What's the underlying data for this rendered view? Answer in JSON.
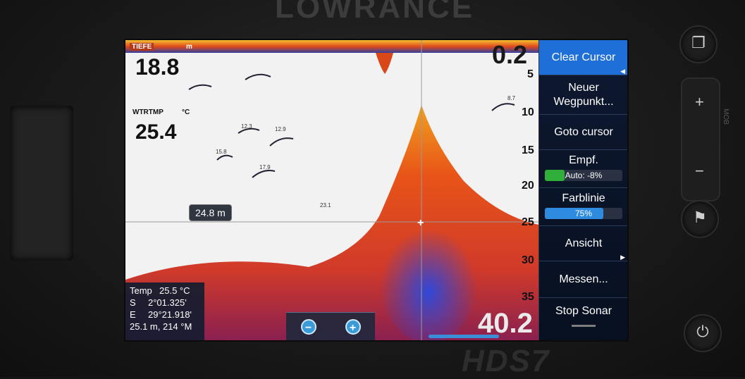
{
  "device": {
    "brand_top": "LOWRANCE",
    "model": "HDS7",
    "mob_label": "MOB"
  },
  "sonar": {
    "depth_label": "TIEFE",
    "depth_unit": "m",
    "depth_value": "18.8",
    "temp_label": "WTRTMP",
    "temp_unit": "°C",
    "temp_value": "25.4",
    "range_top": "0.2",
    "range_bottom": "40.2",
    "scale_ticks": [
      "5",
      "10",
      "15",
      "20",
      "25",
      "30",
      "35"
    ],
    "cursor_depth": "24.8 m",
    "fish_labels": [
      "12.3",
      "12.9",
      "15.8",
      "17.9",
      "23.1",
      "8.7"
    ]
  },
  "info_box": {
    "rows": [
      {
        "k": "Temp",
        "v": "25.5 °C"
      },
      {
        "k": "S",
        "v": "2°01.325'"
      },
      {
        "k": "E",
        "v": "29°21.918'"
      }
    ],
    "footer": "25.1 m, 214 °M"
  },
  "zoom": {
    "zoom_out_icon": "zoom-out-icon",
    "zoom_in_icon": "zoom-in-icon"
  },
  "menu": {
    "clear_cursor": "Clear Cursor",
    "new_waypoint_line1": "Neuer",
    "new_waypoint_line2": "Wegpunkt...",
    "goto_cursor": "Goto cursor",
    "gain_label": "Empf.",
    "gain_value": "Auto: -8%",
    "gain_level": 0.25,
    "colorline_label": "Farblinie",
    "colorline_value": "75%",
    "colorline_level": 0.75,
    "view_label": "Ansicht",
    "measure_label": "Messen...",
    "stop_sonar_label": "Stop Sonar"
  },
  "colors": {
    "menu_active": "#1e6fd8",
    "gain_fill": "#2fae3a",
    "colorline_fill": "#2f8be0"
  }
}
